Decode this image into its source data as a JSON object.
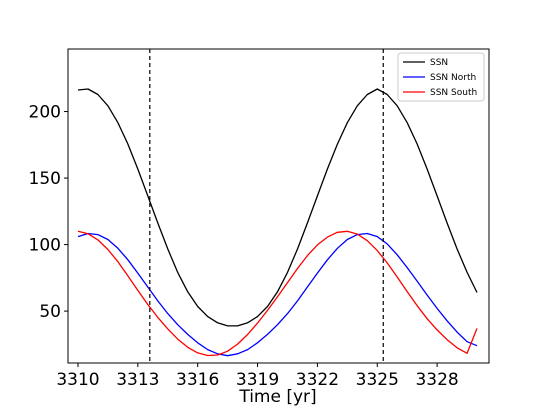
{
  "chart_data": {
    "type": "line",
    "xlabel": "Time [yr]",
    "ylabel": "",
    "title": "",
    "xlim": [
      3309.5,
      3330.6
    ],
    "ylim": [
      11,
      247
    ],
    "x_ticks": [
      3310,
      3313,
      3316,
      3319,
      3322,
      3325,
      3328
    ],
    "x_tick_labels": [
      "3310",
      "3313",
      "3316",
      "3319",
      "3322",
      "3325",
      "3328"
    ],
    "y_ticks": [
      50,
      100,
      150,
      200
    ],
    "y_tick_labels": [
      "50",
      "100",
      "150",
      "200"
    ],
    "vlines": [
      3313.6,
      3325.3
    ],
    "legend_position": "top-right",
    "grid": false,
    "series": [
      {
        "name": "SSN",
        "color": "#000000",
        "x": [
          3310.0,
          3310.5,
          3311.0,
          3311.5,
          3312.0,
          3312.5,
          3313.0,
          3313.5,
          3314.0,
          3314.5,
          3315.0,
          3315.5,
          3316.0,
          3316.5,
          3317.0,
          3317.5,
          3318.0,
          3318.5,
          3319.0,
          3319.5,
          3320.0,
          3320.5,
          3321.0,
          3321.5,
          3322.0,
          3322.5,
          3323.0,
          3323.5,
          3324.0,
          3324.5,
          3325.0,
          3325.5,
          3326.0,
          3326.5,
          3327.0,
          3327.5,
          3328.0,
          3328.5,
          3329.0,
          3329.5,
          3330.0
        ],
        "y": [
          216.2,
          216.9,
          212.8,
          204.3,
          191.6,
          175.5,
          156.8,
          136.6,
          116.2,
          96.7,
          79.1,
          64.5,
          53.5,
          45.9,
          41.2,
          38.9,
          38.9,
          41.2,
          45.9,
          53.5,
          64.5,
          79.1,
          96.7,
          116.2,
          136.6,
          156.8,
          175.5,
          191.6,
          204.3,
          212.8,
          216.9,
          212.8,
          204.3,
          191.6,
          175.5,
          156.8,
          136.6,
          116.2,
          96.7,
          79.1,
          64.0
        ]
      },
      {
        "name": "SSN North",
        "color": "#0000ff",
        "x": [
          3310.0,
          3310.5,
          3311.0,
          3311.5,
          3312.0,
          3312.5,
          3313.0,
          3313.5,
          3314.0,
          3314.5,
          3315.0,
          3315.5,
          3316.0,
          3316.5,
          3317.0,
          3317.5,
          3318.0,
          3318.5,
          3319.0,
          3319.5,
          3320.0,
          3320.5,
          3321.0,
          3321.5,
          3322.0,
          3322.5,
          3323.0,
          3323.5,
          3324.0,
          3324.5,
          3325.0,
          3325.5,
          3326.0,
          3326.5,
          3327.0,
          3327.5,
          3328.0,
          3328.5,
          3329.0,
          3329.5,
          3330.0
        ],
        "y": [
          106.0,
          108.3,
          107.5,
          103.8,
          97.2,
          88.6,
          78.6,
          68.1,
          57.7,
          48.1,
          39.8,
          32.5,
          26.2,
          21.1,
          17.9,
          16.5,
          17.9,
          21.1,
          26.2,
          32.5,
          39.8,
          48.1,
          57.7,
          68.1,
          78.6,
          88.6,
          97.2,
          103.8,
          107.5,
          108.3,
          106.0,
          100.5,
          92.3,
          82.7,
          72.5,
          62.1,
          52.0,
          42.7,
          34.2,
          27.0,
          24.0
        ]
      },
      {
        "name": "SSN South",
        "color": "#ff0000",
        "x": [
          3310.0,
          3310.5,
          3311.0,
          3311.5,
          3312.0,
          3312.5,
          3313.0,
          3313.5,
          3314.0,
          3314.5,
          3315.0,
          3315.5,
          3316.0,
          3316.5,
          3317.0,
          3317.5,
          3318.0,
          3318.5,
          3319.0,
          3319.5,
          3320.0,
          3320.5,
          3321.0,
          3321.5,
          3322.0,
          3322.5,
          3323.0,
          3323.5,
          3324.0,
          3324.5,
          3325.0,
          3325.5,
          3326.0,
          3326.5,
          3327.0,
          3327.5,
          3328.0,
          3328.5,
          3329.0,
          3329.5,
          3330.0
        ],
        "y": [
          110.0,
          108.2,
          103.5,
          96.3,
          87.1,
          76.5,
          65.6,
          55.0,
          45.3,
          36.6,
          29.0,
          22.8,
          18.6,
          16.6,
          17.0,
          19.9,
          25.2,
          32.4,
          41.0,
          50.5,
          60.8,
          71.4,
          82.0,
          91.7,
          99.8,
          105.6,
          109.2,
          110.0,
          107.9,
          102.9,
          95.5,
          86.2,
          75.6,
          64.7,
          54.0,
          44.3,
          35.9,
          28.5,
          22.4,
          18.3,
          37.0
        ]
      }
    ]
  }
}
